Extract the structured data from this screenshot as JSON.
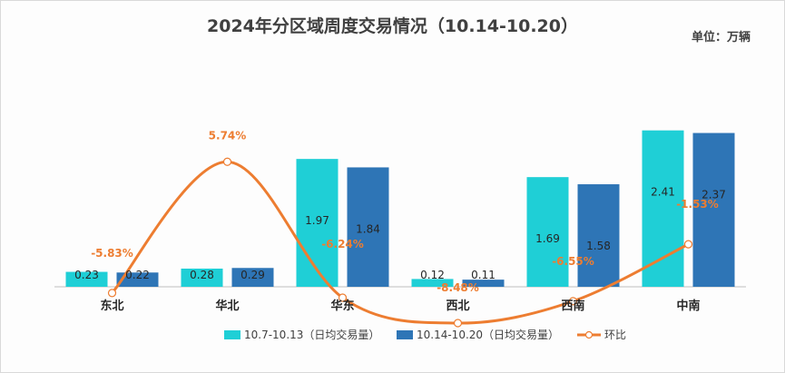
{
  "title": "2024年分区域周度交易情况（10.14-10.20）",
  "unit": "单位：万辆",
  "chart_data": {
    "type": "bar",
    "categories": [
      "东北",
      "华北",
      "华东",
      "西北",
      "西南",
      "中南"
    ],
    "series": [
      {
        "name": "10.7-10.13（日均交易量）",
        "values": [
          0.23,
          0.28,
          1.97,
          0.12,
          1.69,
          2.41
        ],
        "labels": [
          "0.23",
          "0.28",
          "1.97",
          "0.12",
          "1.69",
          "2.41"
        ],
        "color": "#1fcfd6"
      },
      {
        "name": "10.14-10.20（日均交易量）",
        "values": [
          0.22,
          0.29,
          1.84,
          0.11,
          1.58,
          2.37
        ],
        "labels": [
          "0.22",
          "0.29",
          "1.84",
          "0.11",
          "1.58",
          "2.37"
        ],
        "color": "#2e75b6"
      }
    ],
    "line": {
      "name": "环比",
      "values": [
        -5.83,
        5.74,
        -6.24,
        -8.48,
        -6.55,
        -1.53
      ],
      "labels": [
        "-5.83%",
        "5.74%",
        "-6.24%",
        "-8.48%",
        "-6.55%",
        "-1.53%"
      ],
      "color": "#ed7d31"
    },
    "legend_position": "bottom"
  }
}
